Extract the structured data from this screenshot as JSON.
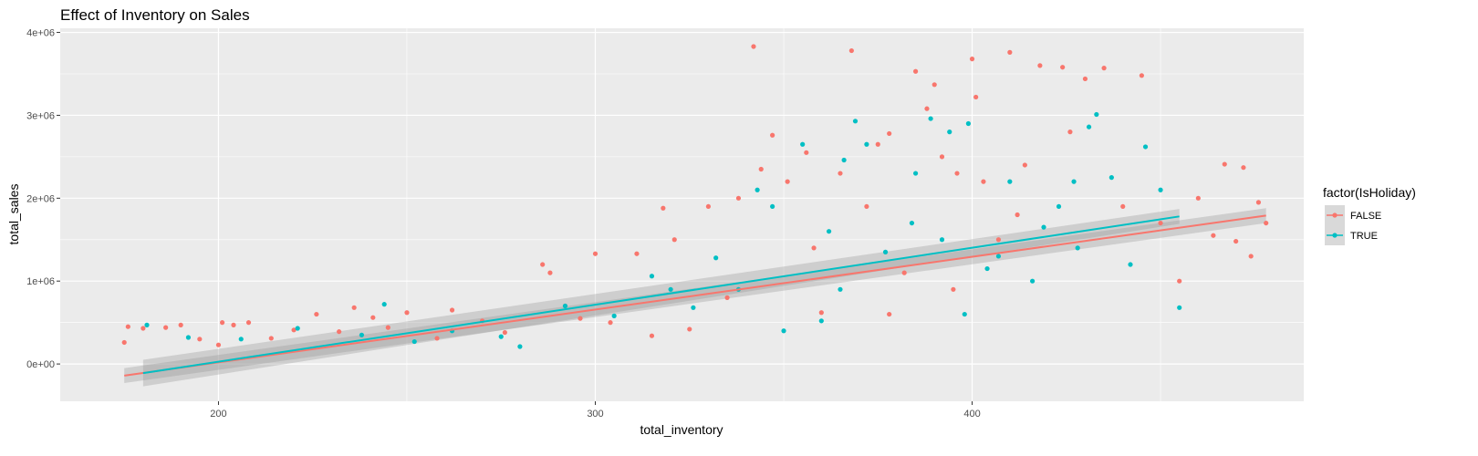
{
  "chart_data": {
    "type": "scatter",
    "title": "Effect of Inventory on Sales",
    "xlabel": "total_inventory",
    "ylabel": "total_sales",
    "xlim": [
      158,
      488
    ],
    "ylim": [
      -450000,
      4050000
    ],
    "x_ticks": [
      200,
      300,
      400
    ],
    "x_tick_labels": [
      "200",
      "300",
      "400"
    ],
    "y_ticks": [
      0,
      1000000,
      2000000,
      3000000,
      4000000
    ],
    "y_tick_labels": [
      "0e+00",
      "1e+06",
      "2e+06",
      "3e+06",
      "4e+06"
    ],
    "grid": true,
    "legend": {
      "title": "factor(IsHoliday)",
      "position": "right",
      "entries": [
        {
          "label": "FALSE",
          "color": "#F8766D"
        },
        {
          "label": "TRUE",
          "color": "#00BFC4"
        }
      ]
    },
    "series": [
      {
        "name": "FALSE",
        "color": "#F8766D",
        "trend": {
          "x": [
            175,
            478
          ],
          "y": [
            -140000,
            1790000
          ],
          "band": [
            90000,
            90000
          ]
        },
        "points": [
          [
            175,
            260000
          ],
          [
            176,
            450000
          ],
          [
            180,
            430000
          ],
          [
            186,
            440000
          ],
          [
            190,
            470000
          ],
          [
            195,
            300000
          ],
          [
            200,
            230000
          ],
          [
            201,
            500000
          ],
          [
            204,
            470000
          ],
          [
            208,
            500000
          ],
          [
            214,
            310000
          ],
          [
            220,
            410000
          ],
          [
            226,
            600000
          ],
          [
            232,
            390000
          ],
          [
            236,
            680000
          ],
          [
            241,
            560000
          ],
          [
            245,
            440000
          ],
          [
            250,
            620000
          ],
          [
            258,
            310000
          ],
          [
            262,
            650000
          ],
          [
            270,
            520000
          ],
          [
            276,
            380000
          ],
          [
            286,
            1200000
          ],
          [
            288,
            1100000
          ],
          [
            292,
            700000
          ],
          [
            296,
            550000
          ],
          [
            300,
            1330000
          ],
          [
            304,
            500000
          ],
          [
            311,
            1330000
          ],
          [
            315,
            340000
          ],
          [
            318,
            1880000
          ],
          [
            321,
            1500000
          ],
          [
            325,
            420000
          ],
          [
            330,
            1900000
          ],
          [
            335,
            800000
          ],
          [
            338,
            2000000
          ],
          [
            342,
            3830000
          ],
          [
            344,
            2350000
          ],
          [
            347,
            2760000
          ],
          [
            351,
            2200000
          ],
          [
            356,
            2550000
          ],
          [
            360,
            620000
          ],
          [
            365,
            2300000
          ],
          [
            368,
            3780000
          ],
          [
            372,
            1900000
          ],
          [
            375,
            2650000
          ],
          [
            378,
            2780000
          ],
          [
            382,
            1100000
          ],
          [
            385,
            3530000
          ],
          [
            388,
            3080000
          ],
          [
            390,
            3370000
          ],
          [
            392,
            2500000
          ],
          [
            396,
            2300000
          ],
          [
            400,
            3680000
          ],
          [
            401,
            3220000
          ],
          [
            403,
            2200000
          ],
          [
            407,
            1500000
          ],
          [
            410,
            3760000
          ],
          [
            414,
            2400000
          ],
          [
            418,
            3600000
          ],
          [
            424,
            3580000
          ],
          [
            430,
            3440000
          ],
          [
            435,
            3570000
          ],
          [
            440,
            1900000
          ],
          [
            445,
            3480000
          ],
          [
            450,
            1700000
          ],
          [
            455,
            1000000
          ],
          [
            460,
            2000000
          ],
          [
            464,
            1550000
          ],
          [
            467,
            2410000
          ],
          [
            470,
            1480000
          ],
          [
            472,
            2370000
          ],
          [
            474,
            1300000
          ],
          [
            476,
            1950000
          ],
          [
            478,
            1700000
          ],
          [
            426,
            2800000
          ],
          [
            378,
            600000
          ],
          [
            395,
            900000
          ],
          [
            412,
            1800000
          ],
          [
            358,
            1400000
          ]
        ]
      },
      {
        "name": "TRUE",
        "color": "#00BFC4",
        "trend": {
          "x": [
            180,
            455
          ],
          "y": [
            -110000,
            1780000
          ],
          "band": [
            160000,
            90000
          ]
        },
        "points": [
          [
            181,
            470000
          ],
          [
            192,
            320000
          ],
          [
            206,
            300000
          ],
          [
            221,
            430000
          ],
          [
            238,
            350000
          ],
          [
            244,
            720000
          ],
          [
            252,
            270000
          ],
          [
            262,
            400000
          ],
          [
            275,
            330000
          ],
          [
            280,
            210000
          ],
          [
            292,
            700000
          ],
          [
            305,
            580000
          ],
          [
            315,
            1060000
          ],
          [
            320,
            900000
          ],
          [
            326,
            680000
          ],
          [
            332,
            1280000
          ],
          [
            338,
            900000
          ],
          [
            343,
            2100000
          ],
          [
            347,
            1900000
          ],
          [
            355,
            2650000
          ],
          [
            362,
            1600000
          ],
          [
            366,
            2460000
          ],
          [
            369,
            2930000
          ],
          [
            372,
            2650000
          ],
          [
            377,
            1350000
          ],
          [
            385,
            2300000
          ],
          [
            389,
            2960000
          ],
          [
            394,
            2800000
          ],
          [
            399,
            2900000
          ],
          [
            404,
            1150000
          ],
          [
            410,
            2200000
          ],
          [
            416,
            1000000
          ],
          [
            423,
            1900000
          ],
          [
            427,
            2200000
          ],
          [
            431,
            2860000
          ],
          [
            433,
            3010000
          ],
          [
            437,
            2250000
          ],
          [
            442,
            1200000
          ],
          [
            446,
            2620000
          ],
          [
            450,
            2100000
          ],
          [
            455,
            680000
          ],
          [
            384,
            1700000
          ],
          [
            360,
            520000
          ],
          [
            350,
            400000
          ],
          [
            392,
            1500000
          ],
          [
            407,
            1300000
          ],
          [
            419,
            1650000
          ],
          [
            428,
            1400000
          ],
          [
            398,
            600000
          ],
          [
            365,
            900000
          ]
        ]
      }
    ]
  }
}
